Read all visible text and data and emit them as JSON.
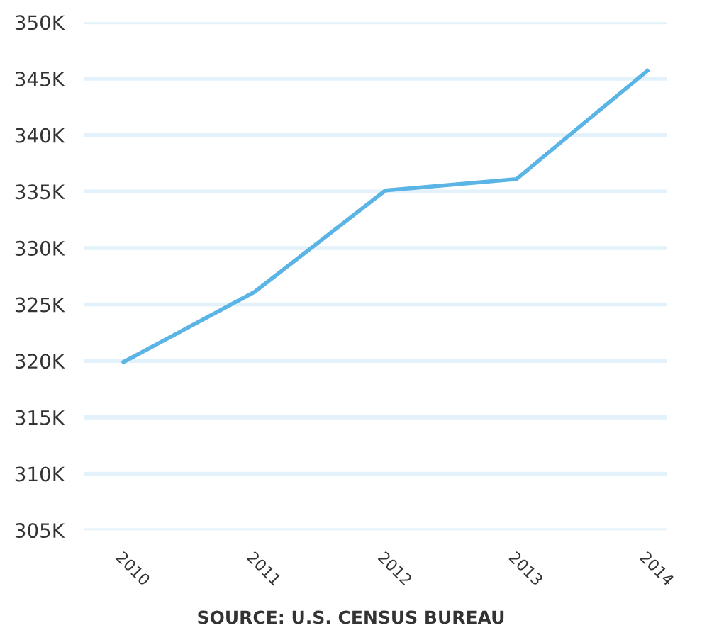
{
  "chart_data": {
    "type": "line",
    "categories": [
      "2010",
      "2011",
      "2012",
      "2013",
      "2014"
    ],
    "series": [
      {
        "color": "#5ab4e5",
        "values": [
          319900,
          326100,
          335100,
          336100,
          345700
        ]
      }
    ],
    "ylim": [
      305000,
      350000
    ],
    "yticks": [
      {
        "value": 305000,
        "label": "305K"
      },
      {
        "value": 310000,
        "label": "310K"
      },
      {
        "value": 315000,
        "label": "315K"
      },
      {
        "value": 320000,
        "label": "320K"
      },
      {
        "value": 325000,
        "label": "325K"
      },
      {
        "value": 330000,
        "label": "330K"
      },
      {
        "value": 335000,
        "label": "335K"
      },
      {
        "value": 340000,
        "label": "340K"
      },
      {
        "value": 345000,
        "label": "345K"
      },
      {
        "value": 350000,
        "label": "350K"
      }
    ],
    "grid": "y",
    "marker": "none",
    "line_style": "solid",
    "legend": false,
    "annotations": [
      "SOURCE: U.S. CENSUS BUREAU"
    ]
  }
}
